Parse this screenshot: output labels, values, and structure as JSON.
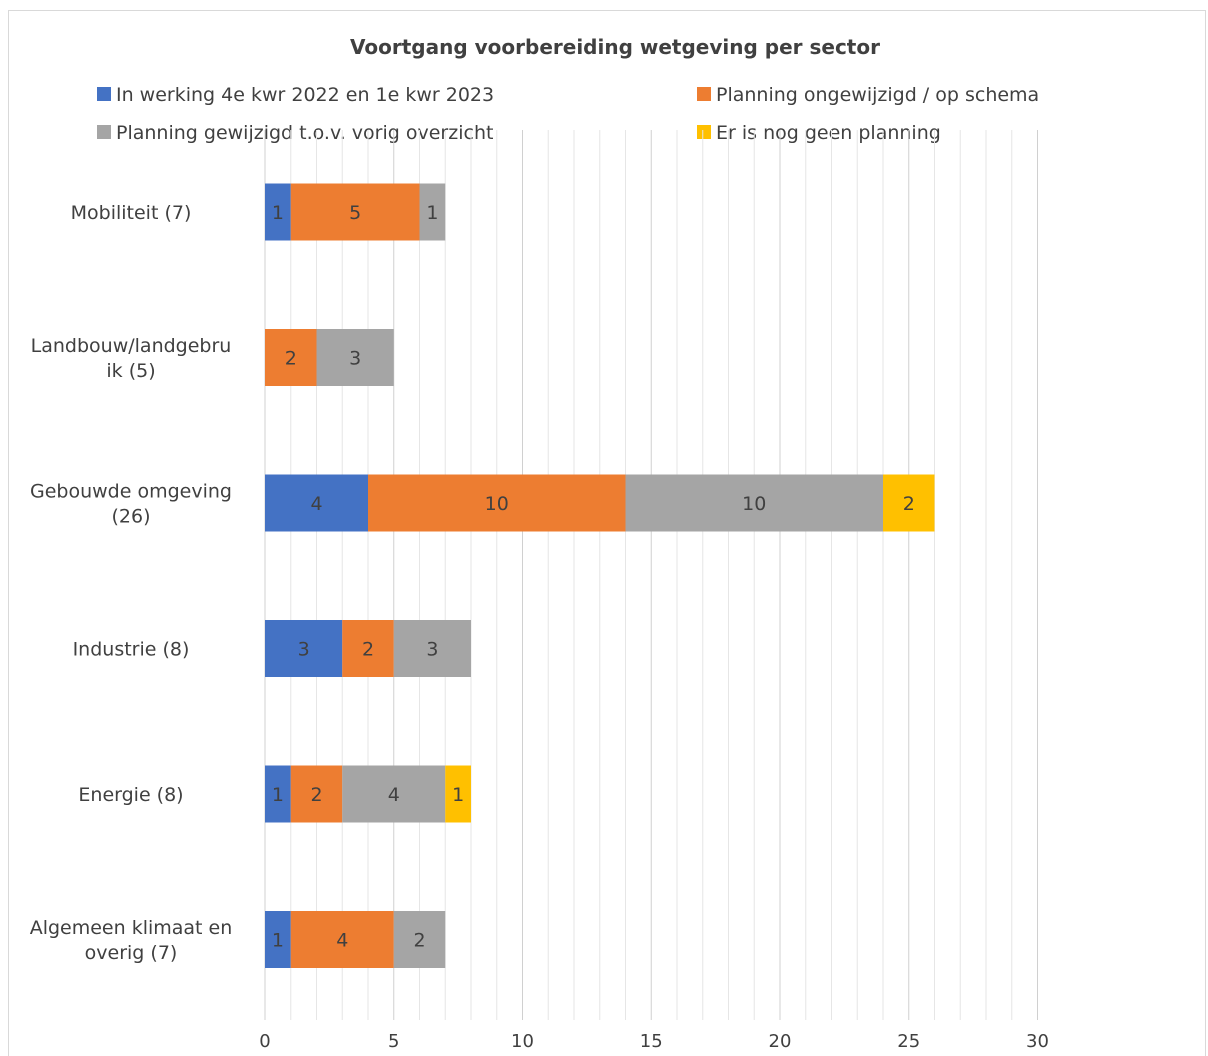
{
  "chart_data": {
    "type": "bar",
    "orientation": "horizontal",
    "stacked": true,
    "title": "Voortgang voorbereiding wetgeving per sector",
    "categories": [
      "Mobiliteit (7)",
      "Landbouw/landgebruik (5)",
      "Gebouwde omgeving (26)",
      "Industrie (8)",
      "Energie (8)",
      "Algemeen klimaat en overig (7)"
    ],
    "category_label_lines": [
      [
        "Mobiliteit (7)"
      ],
      [
        "Landbouw/landgebru",
        "ik (5)"
      ],
      [
        "Gebouwde omgeving",
        "(26)"
      ],
      [
        "Industrie (8)"
      ],
      [
        "Energie (8)"
      ],
      [
        "Algemeen klimaat en",
        "overig (7)"
      ]
    ],
    "series": [
      {
        "name": "In werking 4e kwr 2022 en 1e kwr 2023",
        "color": "#4472C4",
        "values": [
          1,
          0,
          4,
          3,
          1,
          1
        ]
      },
      {
        "name": "Planning ongewijzigd / op schema",
        "color": "#ED7D31",
        "values": [
          5,
          2,
          10,
          2,
          2,
          4
        ]
      },
      {
        "name": "Planning gewijzigd t.o.v. vorig overzicht",
        "color": "#A5A5A5",
        "values": [
          1,
          3,
          10,
          3,
          4,
          2
        ]
      },
      {
        "name": "Er is nog geen planning",
        "color": "#FFC000",
        "values": [
          0,
          0,
          2,
          0,
          1,
          0
        ]
      }
    ],
    "xlim": [
      0,
      30
    ],
    "x_ticks": [
      0,
      5,
      10,
      15,
      20,
      25,
      30
    ],
    "minor_grid_step": 1,
    "grid": true,
    "legend_position": "top",
    "xlabel": "",
    "ylabel": ""
  }
}
